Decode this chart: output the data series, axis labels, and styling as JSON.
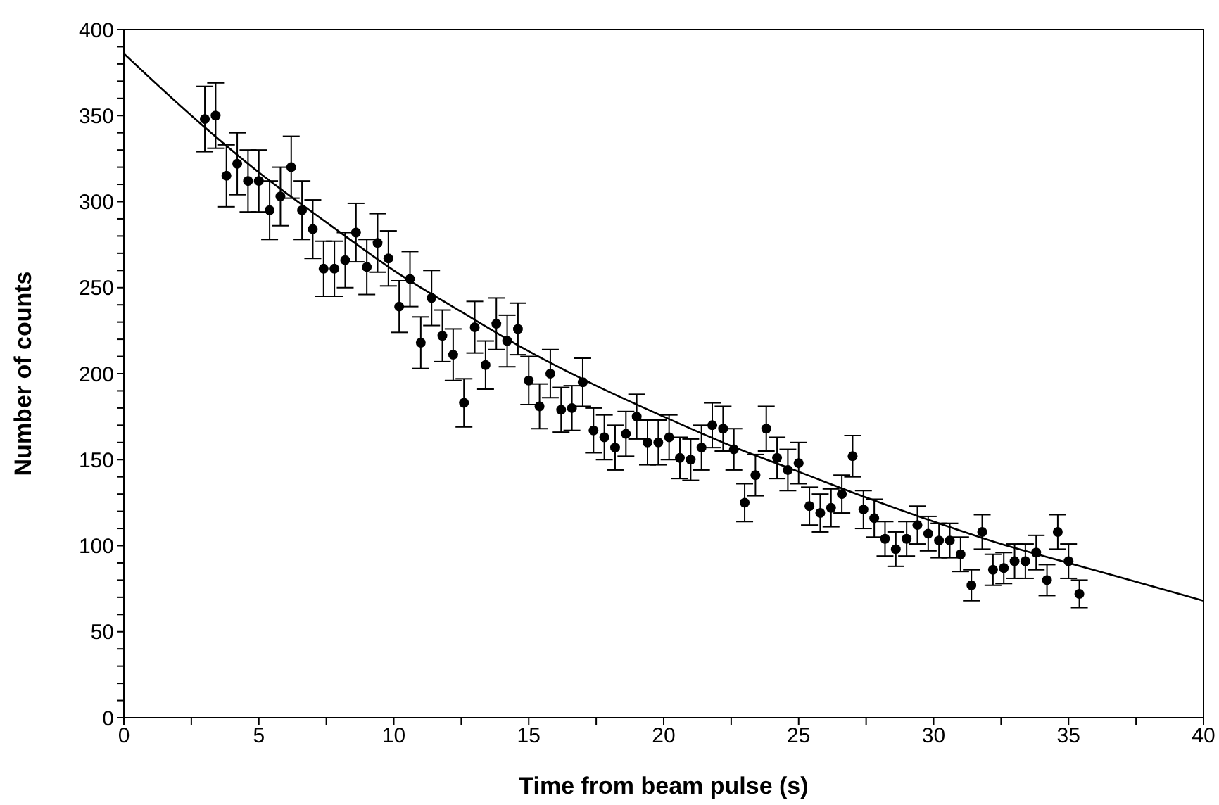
{
  "chart_data": {
    "type": "scatter",
    "xlabel": "Time from beam pulse (s)",
    "ylabel": "Number of counts",
    "xlim": [
      0,
      40
    ],
    "ylim": [
      0,
      400
    ],
    "xticks": [
      0,
      {
        "value": 2.5,
        "label": null
      },
      5,
      {
        "value": 7.5,
        "label": null
      },
      10,
      {
        "value": 12.5,
        "label": null
      },
      15,
      {
        "value": 17.5,
        "label": null
      },
      20,
      {
        "value": 22.5,
        "label": null
      },
      25,
      {
        "value": 27.5,
        "label": null
      },
      30,
      {
        "value": 32.5,
        "label": null
      },
      35,
      {
        "value": 37.5,
        "label": null
      },
      40
    ],
    "yticks": [
      0,
      {
        "value": 10,
        "label": null
      },
      {
        "value": 20,
        "label": null
      },
      {
        "value": 30,
        "label": null
      },
      {
        "value": 40,
        "label": null
      },
      50,
      {
        "value": 60,
        "label": null
      },
      {
        "value": 70,
        "label": null
      },
      {
        "value": 80,
        "label": null
      },
      {
        "value": 90,
        "label": null
      },
      100,
      {
        "value": 110,
        "label": null
      },
      {
        "value": 120,
        "label": null
      },
      {
        "value": 130,
        "label": null
      },
      {
        "value": 140,
        "label": null
      },
      150,
      {
        "value": 160,
        "label": null
      },
      {
        "value": 170,
        "label": null
      },
      {
        "value": 180,
        "label": null
      },
      {
        "value": 190,
        "label": null
      },
      200,
      {
        "value": 210,
        "label": null
      },
      {
        "value": 220,
        "label": null
      },
      {
        "value": 230,
        "label": null
      },
      {
        "value": 240,
        "label": null
      },
      250,
      {
        "value": 260,
        "label": null
      },
      {
        "value": 270,
        "label": null
      },
      {
        "value": 280,
        "label": null
      },
      {
        "value": 290,
        "label": null
      },
      300,
      {
        "value": 310,
        "label": null
      },
      {
        "value": 320,
        "label": null
      },
      {
        "value": 330,
        "label": null
      },
      {
        "value": 340,
        "label": null
      },
      350,
      {
        "value": 360,
        "label": null
      },
      {
        "value": 370,
        "label": null
      },
      {
        "value": 380,
        "label": null
      },
      {
        "value": 390,
        "label": null
      },
      400
    ],
    "grid": false,
    "legend": false,
    "marker": "circle",
    "series": [
      {
        "color": "#000000",
        "x": [
          3.0,
          3.4,
          3.8,
          4.2,
          4.6,
          5.0,
          5.4,
          5.8,
          6.2,
          6.6,
          7.0,
          7.4,
          7.8,
          8.2,
          8.6,
          9.0,
          9.4,
          9.8,
          10.2,
          10.6,
          11.0,
          11.4,
          11.8,
          12.2,
          12.6,
          13.0,
          13.4,
          13.8,
          14.2,
          14.6,
          15.0,
          15.4,
          15.8,
          16.2,
          16.6,
          17.0,
          17.4,
          17.8,
          18.2,
          18.6,
          19.0,
          19.4,
          19.8,
          20.2,
          20.6,
          21.0,
          21.4,
          21.8,
          22.2,
          22.6,
          23.0,
          23.4,
          23.8,
          24.2,
          24.6,
          25.0,
          25.4,
          25.8,
          26.2,
          26.6,
          27.0,
          27.4,
          27.8,
          28.2,
          28.6,
          29.0,
          29.4,
          29.8,
          30.2,
          30.6,
          31.0,
          31.4,
          31.8,
          32.2,
          32.6,
          33.0,
          33.4,
          33.8,
          34.2,
          34.6,
          35.0,
          35.4
        ],
        "values": [
          348,
          350,
          315,
          322,
          312,
          312,
          295,
          303,
          320,
          295,
          284,
          261,
          261,
          266,
          282,
          262,
          276,
          267,
          239,
          255,
          218,
          244,
          222,
          211,
          183,
          227,
          205,
          229,
          219,
          226,
          196,
          181,
          200,
          179,
          180,
          195,
          167,
          163,
          157,
          165,
          175,
          160,
          160,
          163,
          151,
          150,
          157,
          170,
          168,
          156,
          125,
          141,
          168,
          151,
          144,
          148,
          123,
          119,
          122,
          130,
          152,
          121,
          116,
          104,
          98,
          104,
          112,
          107,
          103,
          103,
          95,
          77,
          108,
          86,
          87,
          91,
          91,
          96,
          80,
          108,
          91,
          72
        ],
        "errors": [
          19,
          19,
          18,
          18,
          18,
          18,
          17,
          17,
          18,
          17,
          17,
          16,
          16,
          16,
          17,
          16,
          17,
          16,
          15,
          16,
          15,
          16,
          15,
          15,
          14,
          15,
          14,
          15,
          15,
          15,
          14,
          13,
          14,
          13,
          13,
          14,
          13,
          13,
          13,
          13,
          13,
          13,
          13,
          13,
          12,
          12,
          13,
          13,
          13,
          12,
          11,
          12,
          13,
          12,
          12,
          12,
          11,
          11,
          11,
          11,
          12,
          11,
          11,
          10,
          10,
          10,
          11,
          10,
          10,
          10,
          10,
          9,
          10,
          9,
          9,
          10,
          10,
          10,
          9,
          10,
          10,
          8
        ]
      },
      {
        "type": "line",
        "color": "#000000",
        "marker": "none",
        "line_style": "solid",
        "x": [
          0,
          2.5,
          5,
          7.5,
          10,
          12.5,
          15,
          17.5,
          20,
          22.5,
          25,
          27.5,
          30,
          32.5,
          35,
          37.5,
          40
        ],
        "values": [
          386,
          350,
          317,
          288,
          260,
          236,
          213,
          193,
          175,
          158,
          143,
          128,
          114,
          101,
          90,
          79,
          68
        ]
      }
    ]
  }
}
